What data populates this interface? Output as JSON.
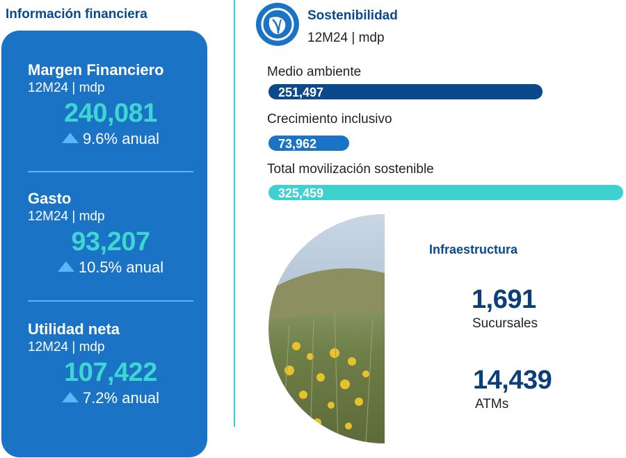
{
  "left": {
    "title": "Información financiera",
    "metrics": [
      {
        "name": "Margen Financiero",
        "period": "12M24 | mdp",
        "value": "240,081",
        "growth": "9.6% anual"
      },
      {
        "name": "Gasto",
        "period": "12M24 | mdp",
        "value": "93,207",
        "growth": "10.5% anual"
      },
      {
        "name": "Utilidad neta",
        "period": "12M24 | mdp",
        "value": "107,422",
        "growth": "7.2% anual"
      }
    ]
  },
  "sustainability": {
    "icon": "leaf-hand-icon",
    "title": "Sostenibilidad",
    "period": "12M24 | mdp",
    "bars": [
      {
        "label": "Medio ambiente",
        "value": "251,497",
        "amount": 251497,
        "color": "#0a4a8c"
      },
      {
        "label": "Crecimiento inclusivo",
        "value": "73,962",
        "amount": 73962,
        "color": "#1a73c4"
      },
      {
        "label": "Total movilización sostenible",
        "value": "325,459",
        "amount": 325459,
        "color": "#3fd1cf"
      }
    ]
  },
  "infrastructure": {
    "title": "Infraestructura",
    "branches_value": "1,691",
    "branches_label": "Sucursales",
    "atms_value": "14,439",
    "atms_label": "ATMs"
  },
  "colors": {
    "card_bg": "#1a73c4",
    "accent_teal": "#3fd6d2",
    "navy": "#0a4a8c",
    "arrow": "#59b7ff"
  }
}
